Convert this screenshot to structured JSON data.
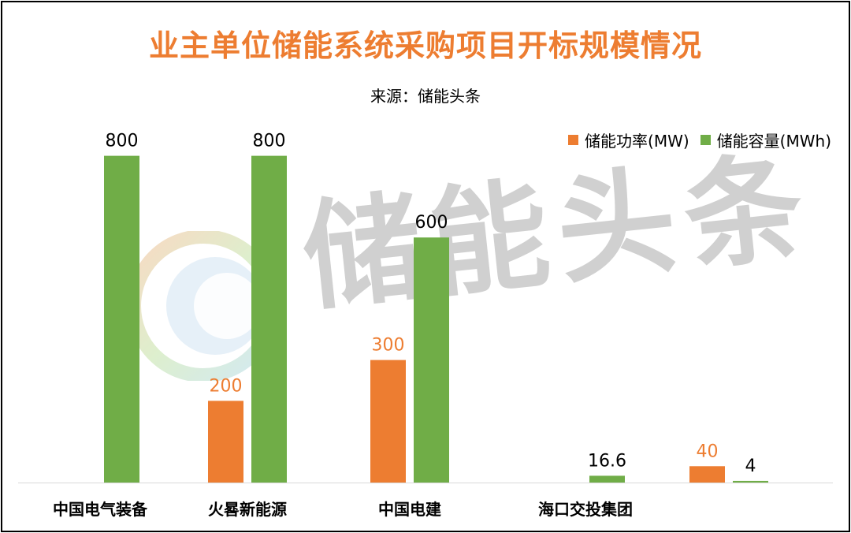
{
  "chart_data": {
    "type": "bar",
    "title": "业主单位储能系统采购项目开标规模情况",
    "subtitle": "来源：储能头条",
    "categories": [
      "中国电气装备",
      "火晷新能源",
      "中国电建",
      "海口交投集团",
      ""
    ],
    "series": [
      {
        "name": "储能功率(MW)",
        "color": "#ED7D31",
        "values": [
          null,
          200,
          300,
          null,
          40
        ]
      },
      {
        "name": "储能容量(MWh)",
        "color": "#70AD47",
        "values": [
          800,
          800,
          600,
          16.6,
          4
        ]
      }
    ],
    "ylim": [
      0,
      1000
    ],
    "grid": false,
    "legend_position": "top-right"
  },
  "watermark": {
    "text": "储能头条",
    "logo": "leaf-circle-logo"
  }
}
